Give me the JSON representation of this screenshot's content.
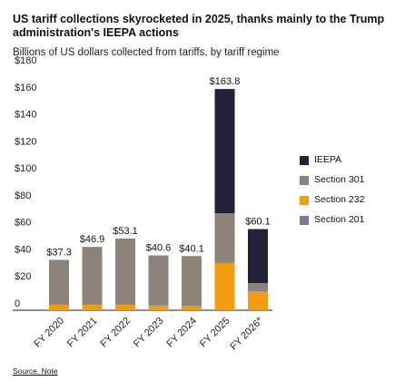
{
  "header": {
    "title": "US tariff collections skyrocketed in 2025, thanks mainly to the Trump administration's IEEPA actions",
    "subtitle": "Billions of US dollars collected from tariffs, by tariff regime"
  },
  "footer": {
    "source_link": "Source, Note"
  },
  "chart_data": {
    "type": "bar",
    "stacked": true,
    "categories": [
      "FY 2020",
      "FY 2021",
      "FY 2022",
      "FY 2023",
      "FY 2024",
      "FY 2025",
      "FY 2026*"
    ],
    "totals": [
      37.3,
      46.9,
      53.1,
      40.6,
      40.1,
      163.8,
      60.1
    ],
    "total_labels": [
      "$37.3",
      "$46.9",
      "$53.1",
      "$40.6",
      "$40.1",
      "$163.8",
      "$60.1"
    ],
    "series": [
      {
        "name": "Section 232",
        "color": "#F39C12",
        "values": [
          4.0,
          4.0,
          4.0,
          3.5,
          3.0,
          35.0,
          14.0
        ]
      },
      {
        "name": "Section 201",
        "color": "#7E7A95",
        "values": [
          0.3,
          0.3,
          0.3,
          0.2,
          0.2,
          1.0,
          1.0
        ]
      },
      {
        "name": "Section 301",
        "color": "#8B827A",
        "values": [
          33.0,
          42.6,
          48.8,
          36.9,
          36.9,
          35.8,
          5.1
        ]
      },
      {
        "name": "IEEPA",
        "color": "#222238",
        "values": [
          0,
          0,
          0,
          0,
          0,
          92.0,
          40.0
        ]
      }
    ],
    "legend_order": [
      "IEEPA",
      "Section 301",
      "Section 232",
      "Section 201"
    ],
    "yticks": [
      0,
      20,
      40,
      60,
      80,
      100,
      120,
      140,
      160,
      180
    ],
    "ytick_labels": [
      "0",
      "$20",
      "$40",
      "$60",
      "$80",
      "$100",
      "$120",
      "$140",
      "$160",
      "$180"
    ],
    "ylim": [
      0,
      180
    ],
    "legend_position": "right",
    "grid": false
  }
}
